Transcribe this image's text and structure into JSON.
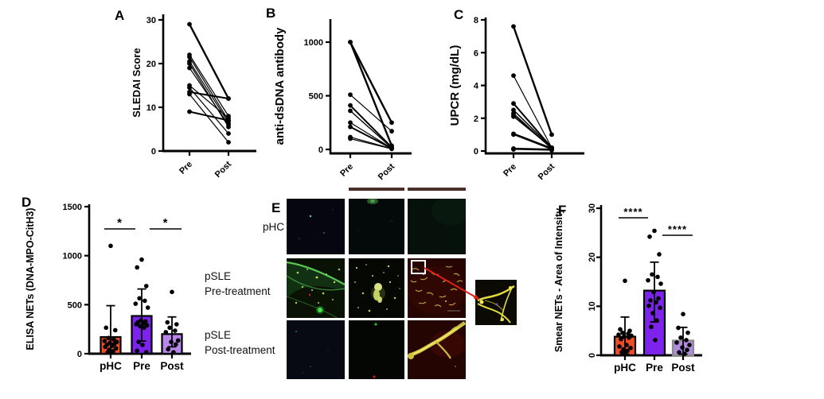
{
  "panels": {
    "A": {
      "letter": "A"
    },
    "B": {
      "letter": "B"
    },
    "C": {
      "letter": "C"
    },
    "D": {
      "letter": "D"
    },
    "E": {
      "letter": "E",
      "row_labels": [
        [
          "pHC"
        ],
        [
          "pSLE",
          "Pre-treatment"
        ],
        [
          "pSLE",
          "Post-treatment"
        ]
      ]
    },
    "F": {
      "letter": "F"
    }
  },
  "colors": {
    "phc_bar": "#EE4B27",
    "pre_bar": "#7D23EB",
    "post_bar_d": "#B987EB",
    "post_bar_f": "#AF8CDC",
    "post_border_f": "#8A8A8A",
    "arrow_red": "#DD1F18",
    "axis": "#000000"
  },
  "chart_data": [
    {
      "id": "A",
      "type": "paired-line",
      "title": "",
      "ylabel": "SLEDAI Score",
      "xlabel": "",
      "categories": [
        "Pre",
        "Post"
      ],
      "ylim": [
        0,
        30
      ],
      "yticks": [
        0,
        10,
        20,
        30
      ],
      "pairs": [
        [
          29,
          12
        ],
        [
          22,
          8
        ],
        [
          21.5,
          7
        ],
        [
          20.5,
          6.5
        ],
        [
          20,
          5.5
        ],
        [
          19,
          6
        ],
        [
          15,
          7.5
        ],
        [
          14.5,
          4
        ],
        [
          13.5,
          12
        ],
        [
          13,
          2
        ],
        [
          9,
          7
        ]
      ],
      "line_widths": [
        2.4,
        1.2,
        1.2,
        1.2,
        1.2,
        1.2,
        1.2,
        1.2,
        2,
        1.2,
        2
      ]
    },
    {
      "id": "B",
      "type": "paired-line",
      "title": "",
      "ylabel": "anti-dsDNA antibody",
      "xlabel": "",
      "categories": [
        "Pre",
        "Post"
      ],
      "ylim": [
        0,
        1000
      ],
      "yticks": [
        0,
        500,
        1000
      ],
      "pairs": [
        [
          1000,
          250
        ],
        [
          1000,
          35
        ],
        [
          510,
          170
        ],
        [
          410,
          20
        ],
        [
          360,
          15
        ],
        [
          250,
          12
        ],
        [
          210,
          10
        ],
        [
          115,
          8
        ],
        [
          100,
          5
        ]
      ],
      "line_widths": [
        2.4,
        2.4,
        1.2,
        2,
        1.4,
        1.2,
        2,
        1.2,
        1.2
      ]
    },
    {
      "id": "C",
      "type": "paired-line",
      "title": "",
      "ylabel": "UPCR (mg/dL)",
      "xlabel": "",
      "categories": [
        "Pre",
        "Post"
      ],
      "ylim": [
        0,
        8
      ],
      "yticks": [
        0,
        2,
        4,
        6,
        8
      ],
      "pairs": [
        [
          7.6,
          1.0
        ],
        [
          4.6,
          0.2
        ],
        [
          2.9,
          0.2
        ],
        [
          2.5,
          0.2
        ],
        [
          2.3,
          0.15
        ],
        [
          2.2,
          0.15
        ],
        [
          2.1,
          0.2
        ],
        [
          1.05,
          0.15
        ],
        [
          1.0,
          0.1
        ],
        [
          0.15,
          0.1
        ],
        [
          0.1,
          0.05
        ]
      ],
      "line_widths": [
        2.4,
        1.2,
        2,
        1.5,
        1.2,
        1.2,
        1.2,
        2.4,
        1.2,
        2,
        1.2
      ]
    },
    {
      "id": "D",
      "type": "bar",
      "title": "",
      "ylabel": "ELISA NETs (DNA-MPO-CitH3)",
      "xlabel": "",
      "categories": [
        "pHC",
        "Pre",
        "Post"
      ],
      "ylim": [
        0,
        1500
      ],
      "yticks": [
        0,
        500,
        1000,
        1500
      ],
      "values": [
        170,
        385,
        200
      ],
      "error_low": [
        5,
        130,
        70
      ],
      "error_high": [
        490,
        660,
        375
      ],
      "bar_colors": [
        "#EE4B27",
        "#7D23EB",
        "#B987EB"
      ],
      "bar_borders": [
        "#000000",
        "#000000",
        "#000000"
      ],
      "dots": [
        [
          1100,
          265,
          240,
          160,
          145,
          130,
          120,
          110,
          100,
          90,
          80,
          70,
          55,
          40,
          25,
          12
        ],
        [
          960,
          880,
          690,
          565,
          540,
          510,
          470,
          340,
          330,
          320,
          310,
          300,
          290,
          280,
          265,
          120,
          90,
          30,
          15
        ],
        [
          630,
          320,
          300,
          265,
          235,
          220,
          135,
          120,
          95,
          45,
          15
        ]
      ],
      "significance": [
        {
          "groups": [
            0,
            1
          ],
          "label": "*"
        },
        {
          "groups": [
            1,
            2
          ],
          "label": "*"
        }
      ]
    },
    {
      "id": "F",
      "type": "bar",
      "title": "",
      "ylabel": "Smear NETs - Area of Intensity",
      "xlabel": "",
      "categories": [
        "pHC",
        "Pre",
        "Post"
      ],
      "ylim": [
        0,
        30
      ],
      "yticks": [
        0,
        10,
        20,
        30
      ],
      "values": [
        3.8,
        13.2,
        3.0
      ],
      "error_low": [
        0.2,
        6.8,
        0.2
      ],
      "error_high": [
        7.8,
        19,
        5.7
      ],
      "bar_colors": [
        "#EE4B27",
        "#7D23EB",
        "#AF8CDC"
      ],
      "bar_borders": [
        "#000000",
        "#000000",
        "#8A8A8A"
      ],
      "dots": [
        [
          15.2,
          5.3,
          5,
          4.6,
          4.4,
          4.2,
          4,
          3.8,
          3.6,
          3.3,
          2.1,
          1.8,
          1.5,
          1.2,
          0.9,
          0.6,
          0.4
        ],
        [
          25.4,
          24.2,
          20.6,
          16.5,
          16,
          15.3,
          14.6,
          12.9,
          11.6,
          11.2,
          10.8,
          10.1,
          9.7,
          8.6,
          7.1,
          5.8,
          3.1
        ],
        [
          8.4,
          5.6,
          4.6,
          3.6,
          3.1,
          2.6,
          2.1,
          1.6,
          1.1,
          0.6,
          0.3
        ]
      ],
      "significance": [
        {
          "groups": [
            0,
            1
          ],
          "label": "****"
        },
        {
          "groups": [
            1,
            2
          ],
          "label": "****"
        }
      ]
    }
  ]
}
